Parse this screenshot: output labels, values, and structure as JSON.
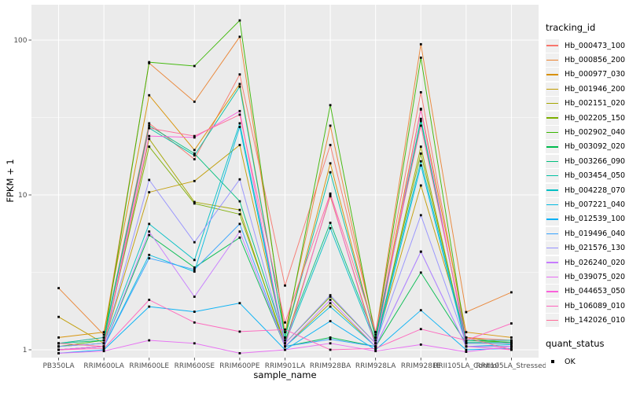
{
  "chart_data": {
    "type": "line",
    "title": "",
    "xlabel": "sample_name",
    "ylabel": "FPKM + 1",
    "y_scale": "log10",
    "y_ticks": [
      "1",
      "10",
      "100"
    ],
    "y_minor_breaks": [
      3.1622776,
      31.622776
    ],
    "ylim_px_note": "log scale, one decade per 197px",
    "grid": true,
    "legend_position": "right",
    "legend_title": "tracking_id",
    "quant_legend": {
      "title": "quant_status",
      "items": [
        "OK"
      ]
    },
    "categories": [
      "PB350LA",
      "RRIM600LA",
      "RRIM600LE",
      "RRIM600SE",
      "RRIM600PE",
      "RRIM901LA",
      "RRIM928BA",
      "RRIM928LA",
      "RRIM928LE",
      "RRII105LA_Control",
      "RRII105LA_Stressed"
    ],
    "series": [
      {
        "name": "Hb_000473_100",
        "color": "#F8766D",
        "values": [
          1.1,
          1.2,
          29.0,
          17.0,
          60.0,
          2.6,
          21.0,
          1.3,
          46.0,
          1.2,
          1.15
        ]
      },
      {
        "name": "Hb_000856_200",
        "color": "#EA8331",
        "values": [
          2.5,
          1.25,
          71.0,
          40.0,
          105.0,
          1.3,
          28.0,
          1.25,
          94.0,
          1.75,
          2.35
        ]
      },
      {
        "name": "Hb_000977_030",
        "color": "#D89000",
        "values": [
          1.2,
          1.3,
          44.0,
          19.5,
          52.0,
          1.2,
          16.0,
          1.2,
          36.0,
          1.3,
          1.2
        ]
      },
      {
        "name": "Hb_001946_200",
        "color": "#C09B00",
        "values": [
          1.63,
          1.1,
          10.4,
          12.3,
          21.0,
          1.1,
          9.8,
          1.1,
          11.5,
          1.2,
          1.1
        ]
      },
      {
        "name": "Hb_002151_020",
        "color": "#A3A500",
        "values": [
          1.0,
          1.05,
          23.0,
          9.0,
          8.0,
          1.05,
          2.0,
          1.05,
          20.5,
          1.05,
          1.05
        ]
      },
      {
        "name": "Hb_002205_150",
        "color": "#7CAE00",
        "values": [
          1.05,
          1.1,
          20.5,
          8.8,
          7.5,
          1.1,
          2.2,
          1.1,
          18.5,
          1.1,
          1.1
        ]
      },
      {
        "name": "Hb_002902_040",
        "color": "#39B600",
        "values": [
          1.05,
          1.15,
          72.0,
          68.0,
          134.0,
          1.2,
          38.0,
          1.2,
          77.0,
          1.15,
          1.12
        ]
      },
      {
        "name": "Hb_003092_020",
        "color": "#00BB4E",
        "values": [
          1.0,
          1.05,
          5.5,
          3.4,
          5.3,
          1.05,
          1.2,
          1.05,
          3.15,
          1.1,
          1.1
        ]
      },
      {
        "name": "Hb_003266_090",
        "color": "#00BF7D",
        "values": [
          1.1,
          1.15,
          28.0,
          18.5,
          9.1,
          1.15,
          6.6,
          1.15,
          31.0,
          1.12,
          1.12
        ]
      },
      {
        "name": "Hb_003454_050",
        "color": "#00C1A3",
        "values": [
          1.1,
          1.2,
          27.0,
          18.0,
          50.0,
          1.2,
          14.0,
          1.2,
          30.0,
          1.15,
          1.15
        ]
      },
      {
        "name": "Hb_004228_070",
        "color": "#00BFC4",
        "values": [
          1.05,
          1.1,
          6.5,
          3.8,
          29.0,
          1.1,
          6.1,
          1.1,
          16.5,
          1.1,
          1.1
        ]
      },
      {
        "name": "Hb_007221_040",
        "color": "#00BAE0",
        "values": [
          1.0,
          1.05,
          4.1,
          3.2,
          27.5,
          1.05,
          1.9,
          1.05,
          15.5,
          1.05,
          1.08
        ]
      },
      {
        "name": "Hb_012539_100",
        "color": "#00B0F6",
        "values": [
          0.95,
          1.0,
          1.9,
          1.76,
          2.0,
          1.0,
          1.53,
          1.0,
          1.8,
          1.0,
          1.02
        ]
      },
      {
        "name": "Hb_019496_040",
        "color": "#35A2FF",
        "values": [
          1.0,
          1.05,
          3.9,
          3.3,
          6.5,
          1.05,
          1.17,
          1.05,
          4.3,
          1.05,
          1.05
        ]
      },
      {
        "name": "Hb_021576_130",
        "color": "#9590FF",
        "values": [
          1.05,
          1.1,
          12.5,
          4.95,
          12.6,
          1.1,
          2.25,
          1.1,
          7.4,
          1.1,
          1.1
        ]
      },
      {
        "name": "Hb_026240_020",
        "color": "#C77CFF",
        "values": [
          1.0,
          1.05,
          5.8,
          2.2,
          5.8,
          1.05,
          2.1,
          1.05,
          4.3,
          1.05,
          1.05
        ]
      },
      {
        "name": "Hb_039075_020",
        "color": "#E76BF3",
        "values": [
          0.95,
          0.98,
          1.15,
          1.1,
          0.95,
          1.0,
          1.1,
          0.98,
          1.08,
          0.97,
          1.05
        ]
      },
      {
        "name": "Hb_044653_050",
        "color": "#FA62DB",
        "values": [
          1.0,
          1.05,
          24.0,
          23.5,
          34.8,
          1.05,
          10.0,
          1.05,
          35.6,
          1.05,
          1.0
        ]
      },
      {
        "name": "Hb_106089_010",
        "color": "#FF62BC",
        "values": [
          1.0,
          1.02,
          2.1,
          1.5,
          1.31,
          1.35,
          1.0,
          1.02,
          1.36,
          1.15,
          1.48
        ]
      },
      {
        "name": "Hb_142026_010",
        "color": "#FF6A98",
        "values": [
          1.1,
          1.05,
          27.0,
          24.0,
          33.0,
          1.5,
          10.2,
          1.3,
          28.0,
          1.2,
          1.0
        ]
      }
    ]
  },
  "style": {
    "panel_bg": "#EBEBEB",
    "grid_color": "#FFFFFF",
    "tick_label_color": "#4D4D4D",
    "tick_mark_color": "#333333",
    "point_color": "#000000",
    "legend_key_bg": "#F0F0F0"
  }
}
